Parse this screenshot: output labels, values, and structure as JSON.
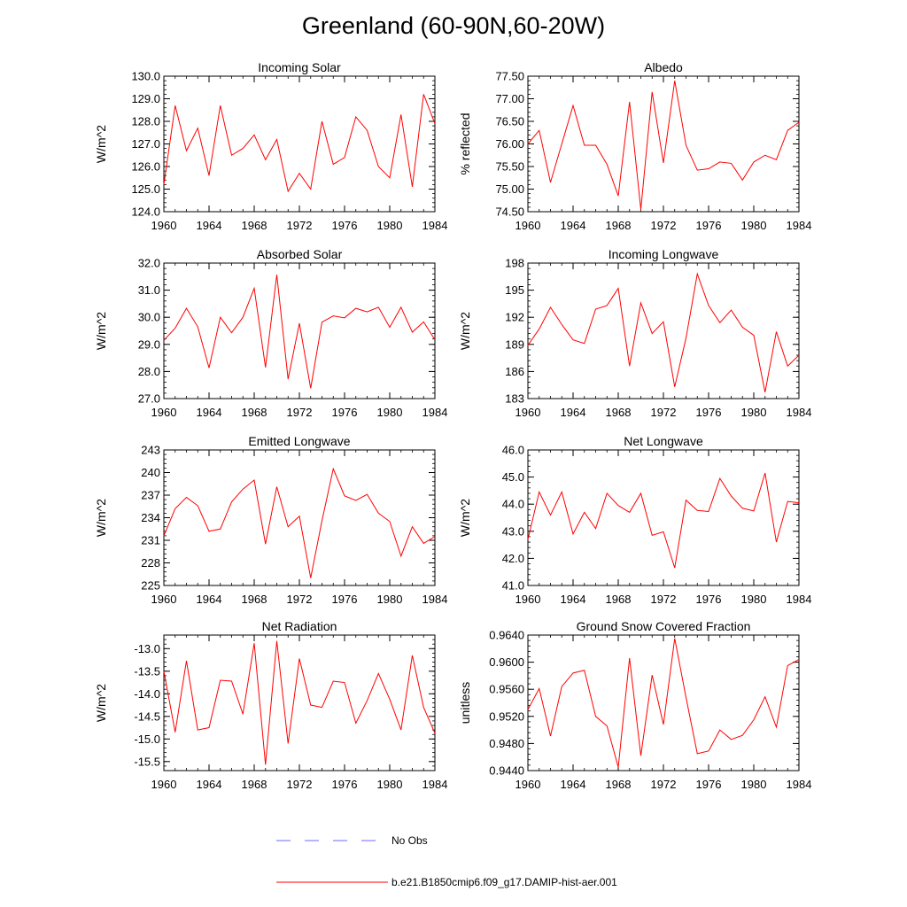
{
  "title": "Greenland (60-90N,60-20W)",
  "legend": [
    {
      "label": "No Obs",
      "color": "#6a6aff",
      "style": "dashed"
    },
    {
      "label": "b.e21.B1850cmip6.f09_g17.DAMIP-hist-aer.001",
      "color": "#ff0000",
      "style": "solid"
    }
  ],
  "chart_data": [
    {
      "type": "line",
      "title": "Incoming Solar",
      "xlabel": "",
      "ylabel": "W/m^2",
      "xlim": [
        1960,
        1984
      ],
      "ylim": [
        124,
        130
      ],
      "xticks": [
        "1960",
        "1964",
        "1968",
        "1972",
        "1976",
        "1980",
        "1984"
      ],
      "yticks": [
        "124.0",
        "125.0",
        "126.0",
        "127.0",
        "128.0",
        "129.0",
        "130.0"
      ],
      "x": [
        1960,
        1961,
        1962,
        1963,
        1964,
        1965,
        1966,
        1967,
        1968,
        1969,
        1970,
        1971,
        1972,
        1973,
        1974,
        1975,
        1976,
        1977,
        1978,
        1979,
        1980,
        1981,
        1982,
        1983,
        1984
      ],
      "series": [
        {
          "name": "b.e21.B1850cmip6.f09_g17.DAMIP-hist-aer.001",
          "color": "#ff0000",
          "values": [
            125.2,
            128.7,
            126.7,
            127.7,
            125.6,
            128.7,
            126.5,
            126.8,
            127.4,
            126.3,
            127.2,
            124.9,
            125.7,
            125.0,
            128.0,
            126.1,
            126.4,
            128.2,
            127.6,
            126.0,
            125.5,
            128.3,
            125.1,
            129.2,
            127.9
          ]
        }
      ]
    },
    {
      "type": "line",
      "title": "Albedo",
      "xlabel": "",
      "ylabel": "% reflected",
      "xlim": [
        1960,
        1984
      ],
      "ylim": [
        74.5,
        77.5
      ],
      "xticks": [
        "1960",
        "1964",
        "1968",
        "1972",
        "1976",
        "1980",
        "1984"
      ],
      "yticks": [
        "74.50",
        "75.00",
        "75.50",
        "76.00",
        "76.50",
        "77.00",
        "77.50"
      ],
      "x": [
        1960,
        1961,
        1962,
        1963,
        1964,
        1965,
        1966,
        1967,
        1968,
        1969,
        1970,
        1971,
        1972,
        1973,
        1974,
        1975,
        1976,
        1977,
        1978,
        1979,
        1980,
        1981,
        1982,
        1983,
        1984
      ],
      "series": [
        {
          "name": "b.e21.B1850cmip6.f09_g17.DAMIP-hist-aer.001",
          "color": "#ff0000",
          "values": [
            76.0,
            76.3,
            75.15,
            76.0,
            76.85,
            75.97,
            75.97,
            75.55,
            74.85,
            76.93,
            74.55,
            77.15,
            75.58,
            77.4,
            75.97,
            75.42,
            75.45,
            75.6,
            75.57,
            75.2,
            75.6,
            75.75,
            75.65,
            76.3,
            76.48
          ]
        }
      ]
    },
    {
      "type": "line",
      "title": "Absorbed Solar",
      "xlabel": "",
      "ylabel": "W/m^2",
      "xlim": [
        1960,
        1984
      ],
      "ylim": [
        27,
        32
      ],
      "xticks": [
        "1960",
        "1964",
        "1968",
        "1972",
        "1976",
        "1980",
        "1984"
      ],
      "yticks": [
        "27.0",
        "28.0",
        "29.0",
        "30.0",
        "31.0",
        "32.0"
      ],
      "x": [
        1960,
        1961,
        1962,
        1963,
        1964,
        1965,
        1966,
        1967,
        1968,
        1969,
        1970,
        1971,
        1972,
        1973,
        1974,
        1975,
        1976,
        1977,
        1978,
        1979,
        1980,
        1981,
        1982,
        1983,
        1984
      ],
      "series": [
        {
          "name": "b.e21.B1850cmip6.f09_g17.DAMIP-hist-aer.001",
          "color": "#ff0000",
          "values": [
            29.15,
            29.6,
            30.33,
            29.65,
            28.13,
            30.0,
            29.43,
            30.0,
            31.07,
            28.15,
            31.57,
            27.72,
            29.78,
            27.38,
            29.82,
            30.05,
            29.98,
            30.33,
            30.2,
            30.37,
            29.63,
            30.37,
            29.45,
            29.83,
            29.17
          ]
        }
      ]
    },
    {
      "type": "line",
      "title": "Incoming Longwave",
      "xlabel": "",
      "ylabel": "W/m^2",
      "xlim": [
        1960,
        1984
      ],
      "ylim": [
        183,
        198
      ],
      "xticks": [
        "1960",
        "1964",
        "1968",
        "1972",
        "1976",
        "1980",
        "1984"
      ],
      "yticks": [
        "183",
        "186",
        "189",
        "192",
        "195",
        "198"
      ],
      "x": [
        1960,
        1961,
        1962,
        1963,
        1964,
        1965,
        1966,
        1967,
        1968,
        1969,
        1970,
        1971,
        1972,
        1973,
        1974,
        1975,
        1976,
        1977,
        1978,
        1979,
        1980,
        1981,
        1982,
        1983,
        1984
      ],
      "series": [
        {
          "name": "b.e21.B1850cmip6.f09_g17.DAMIP-hist-aer.001",
          "color": "#ff0000",
          "values": [
            188.9,
            190.7,
            193.1,
            191.2,
            189.5,
            189.1,
            192.9,
            193.3,
            195.2,
            186.6,
            193.6,
            190.2,
            191.5,
            184.3,
            189.7,
            196.8,
            193.3,
            191.4,
            192.8,
            190.9,
            190.0,
            183.7,
            190.4,
            186.6,
            187.8
          ]
        }
      ]
    },
    {
      "type": "line",
      "title": "Emitted Longwave",
      "xlabel": "",
      "ylabel": "W/m^2",
      "xlim": [
        1960,
        1984
      ],
      "ylim": [
        225,
        243
      ],
      "xticks": [
        "1960",
        "1964",
        "1968",
        "1972",
        "1976",
        "1980",
        "1984"
      ],
      "yticks": [
        "225",
        "228",
        "231",
        "234",
        "237",
        "240",
        "243"
      ],
      "x": [
        1960,
        1961,
        1962,
        1963,
        1964,
        1965,
        1966,
        1967,
        1968,
        1969,
        1970,
        1971,
        1972,
        1973,
        1974,
        1975,
        1976,
        1977,
        1978,
        1979,
        1980,
        1981,
        1982,
        1983,
        1984
      ],
      "series": [
        {
          "name": "b.e21.B1850cmip6.f09_g17.DAMIP-hist-aer.001",
          "color": "#ff0000",
          "values": [
            231.6,
            235.2,
            236.7,
            235.6,
            232.2,
            232.5,
            236.1,
            237.8,
            239.0,
            230.5,
            238.1,
            232.8,
            234.2,
            226.0,
            233.6,
            240.5,
            236.9,
            236.3,
            237.1,
            234.6,
            233.5,
            228.9,
            232.8,
            230.6,
            231.5
          ]
        }
      ]
    },
    {
      "type": "line",
      "title": "Net Longwave",
      "xlabel": "",
      "ylabel": "W/m^2",
      "xlim": [
        1960,
        1984
      ],
      "ylim": [
        41,
        46
      ],
      "xticks": [
        "1960",
        "1964",
        "1968",
        "1972",
        "1976",
        "1980",
        "1984"
      ],
      "yticks": [
        "41.0",
        "42.0",
        "43.0",
        "44.0",
        "45.0",
        "46.0"
      ],
      "x": [
        1960,
        1961,
        1962,
        1963,
        1964,
        1965,
        1966,
        1967,
        1968,
        1969,
        1970,
        1971,
        1972,
        1973,
        1974,
        1975,
        1976,
        1977,
        1978,
        1979,
        1980,
        1981,
        1982,
        1983,
        1984
      ],
      "series": [
        {
          "name": "b.e21.B1850cmip6.f09_g17.DAMIP-hist-aer.001",
          "color": "#ff0000",
          "values": [
            42.7,
            44.45,
            43.6,
            44.45,
            42.9,
            43.7,
            43.1,
            44.4,
            43.95,
            43.7,
            44.4,
            42.85,
            42.98,
            41.65,
            44.15,
            43.77,
            43.73,
            44.95,
            44.3,
            43.85,
            43.75,
            45.15,
            42.6,
            44.1,
            44.05
          ]
        }
      ]
    },
    {
      "type": "line",
      "title": "Net Radiation",
      "xlabel": "",
      "ylabel": "W/m^2",
      "xlim": [
        1960,
        1984
      ],
      "ylim": [
        -15.7,
        -12.7
      ],
      "xticks": [
        "1960",
        "1964",
        "1968",
        "1972",
        "1976",
        "1980",
        "1984"
      ],
      "yticks": [
        "-15.5",
        "-15.0",
        "-14.5",
        "-14.0",
        "-13.5",
        "-13.0"
      ],
      "x": [
        1960,
        1961,
        1962,
        1963,
        1964,
        1965,
        1966,
        1967,
        1968,
        1969,
        1970,
        1971,
        1972,
        1973,
        1974,
        1975,
        1976,
        1977,
        1978,
        1979,
        1980,
        1981,
        1982,
        1983,
        1984
      ],
      "series": [
        {
          "name": "b.e21.B1850cmip6.f09_g17.DAMIP-hist-aer.001",
          "color": "#ff0000",
          "values": [
            -13.5,
            -14.85,
            -13.27,
            -14.8,
            -14.75,
            -13.7,
            -13.72,
            -14.45,
            -12.88,
            -15.57,
            -12.83,
            -15.1,
            -13.22,
            -14.25,
            -14.3,
            -13.72,
            -13.75,
            -14.65,
            -14.15,
            -13.55,
            -14.12,
            -14.8,
            -13.15,
            -14.3,
            -14.87
          ]
        }
      ]
    },
    {
      "type": "line",
      "title": "Ground Snow Covered Fraction",
      "xlabel": "",
      "ylabel": "unitless",
      "xlim": [
        1960,
        1984
      ],
      "ylim": [
        0.944,
        0.964
      ],
      "xticks": [
        "1960",
        "1964",
        "1968",
        "1972",
        "1976",
        "1980",
        "1984"
      ],
      "yticks": [
        "0.9440",
        "0.9480",
        "0.9520",
        "0.9560",
        "0.9600",
        "0.9640"
      ],
      "x": [
        1960,
        1961,
        1962,
        1963,
        1964,
        1965,
        1966,
        1967,
        1968,
        1969,
        1970,
        1971,
        1972,
        1973,
        1974,
        1975,
        1976,
        1977,
        1978,
        1979,
        1980,
        1981,
        1982,
        1983,
        1984
      ],
      "series": [
        {
          "name": "b.e21.B1850cmip6.f09_g17.DAMIP-hist-aer.001",
          "color": "#ff0000",
          "values": [
            0.953,
            0.9561,
            0.9491,
            0.9564,
            0.9584,
            0.9588,
            0.952,
            0.9506,
            0.9445,
            0.9606,
            0.9462,
            0.9581,
            0.9508,
            0.9635,
            0.9548,
            0.9465,
            0.9469,
            0.95,
            0.9486,
            0.9492,
            0.9515,
            0.9549,
            0.9504,
            0.9595,
            0.9604
          ]
        }
      ]
    }
  ]
}
